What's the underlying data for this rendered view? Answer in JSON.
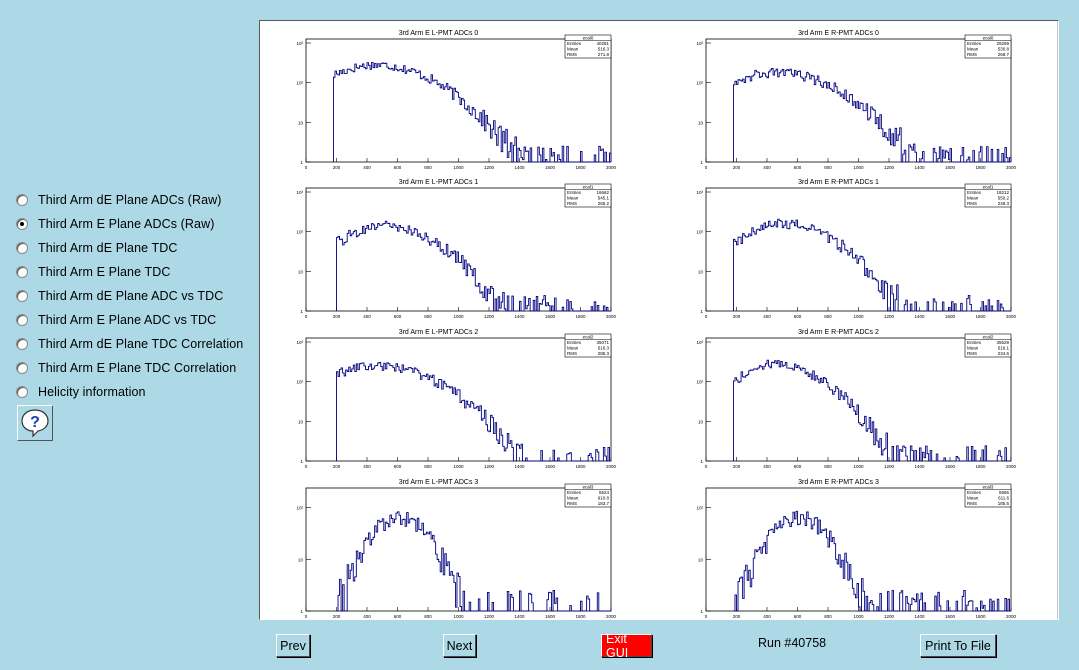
{
  "radio_options": [
    {
      "label": "Third Arm dE Plane ADCs (Raw)",
      "checked": false
    },
    {
      "label": "Third Arm E Plane ADCs (Raw)",
      "checked": true
    },
    {
      "label": "Third Arm dE Plane TDC",
      "checked": false
    },
    {
      "label": "Third Arm E Plane TDC",
      "checked": false
    },
    {
      "label": "Third Arm dE Plane ADC vs TDC",
      "checked": false
    },
    {
      "label": "Third Arm E Plane ADC vs TDC",
      "checked": false
    },
    {
      "label": "Third Arm dE Plane TDC Correlation",
      "checked": false
    },
    {
      "label": "Third Arm E Plane TDC Correlation",
      "checked": false
    },
    {
      "label": "Helicity information",
      "checked": false
    }
  ],
  "help_button": {
    "icon": "question-bubble-icon",
    "label": "?"
  },
  "buttons": {
    "prev": "Prev",
    "next": "Next",
    "exit": "Exit GUI",
    "print": "Print To File"
  },
  "run_label": "Run #40758",
  "colors": {
    "background": "#add8e6",
    "hist_line": "#00007f",
    "exit_button": "#ff0000"
  },
  "stats_labels": [
    "Entries",
    "Mean",
    "RMS"
  ],
  "x_axis_ticks": [
    "0",
    "200",
    "400",
    "600",
    "800",
    "1000",
    "1200",
    "1400",
    "1600",
    "1800",
    "2000"
  ],
  "y_axis_ticks": [
    "1",
    "10",
    "10²",
    "10³"
  ],
  "chart_data": [
    {
      "type": "histogram",
      "title": "3rd Arm E L-PMT ADCs 0",
      "stats_name": "ecal0",
      "entries": "40281",
      "mean": "516.3",
      "rms": "271.8",
      "y_log": true,
      "xlim": [
        0,
        2000
      ],
      "ylim": [
        1,
        1000
      ],
      "threshold": 180,
      "peak_x": 450,
      "peak_log": 2.45,
      "init_log": 2.2,
      "falloff": 760
    },
    {
      "type": "histogram",
      "title": "3rd Arm E R-PMT ADCs 0",
      "stats_name": "ecal0",
      "entries": "29259",
      "mean": "530.8",
      "rms": "268.7",
      "y_log": true,
      "xlim": [
        0,
        2000
      ],
      "ylim": [
        1,
        1000
      ],
      "threshold": 180,
      "peak_x": 460,
      "peak_log": 2.25,
      "init_log": 2.05,
      "falloff": 760
    },
    {
      "type": "histogram",
      "title": "3rd Arm E L-PMT ADCs 1",
      "stats_name": "ecal1",
      "entries": "16662",
      "mean": "545.1",
      "rms": "265.2",
      "y_log": true,
      "xlim": [
        0,
        2000
      ],
      "ylim": [
        1,
        1000
      ],
      "threshold": 200,
      "peak_x": 480,
      "peak_log": 2.15,
      "init_log": 1.7,
      "falloff": 700
    },
    {
      "type": "histogram",
      "title": "3rd Arm E R-PMT ADCs 1",
      "stats_name": "ecal1",
      "entries": "18212",
      "mean": "550.2",
      "rms": "248.3",
      "y_log": true,
      "xlim": [
        0,
        2000
      ],
      "ylim": [
        1,
        1000
      ],
      "threshold": 180,
      "peak_x": 500,
      "peak_log": 2.2,
      "init_log": 1.7,
      "falloff": 650
    },
    {
      "type": "histogram",
      "title": "3rd Arm E L-PMT ADCs 2",
      "stats_name": "ecal2",
      "entries": "35071",
      "mean": "516.3",
      "rms": "285.3",
      "y_log": true,
      "xlim": [
        0,
        2000
      ],
      "ylim": [
        1,
        1000
      ],
      "threshold": 200,
      "peak_x": 460,
      "peak_log": 2.4,
      "init_log": 2.2,
      "falloff": 780
    },
    {
      "type": "histogram",
      "title": "3rd Arm E R-PMT ADCs 2",
      "stats_name": "ecal2",
      "entries": "35629",
      "mean": "516.1",
      "rms": "234.6",
      "y_log": true,
      "xlim": [
        0,
        2000
      ],
      "ylim": [
        1,
        1000
      ],
      "threshold": 180,
      "peak_x": 430,
      "peak_log": 2.45,
      "init_log": 2.0,
      "falloff": 640
    },
    {
      "type": "histogram",
      "title": "3rd Arm E L-PMT ADCs 3",
      "stats_name": "ecal3",
      "entries": "5524",
      "mean": "610.8",
      "rms": "183.7",
      "y_log": true,
      "xlim": [
        0,
        2000
      ],
      "ylim": [
        1,
        200
      ],
      "threshold": 200,
      "peak_x": 600,
      "peak_log": 1.8,
      "init_log": 0.1,
      "falloff": 400
    },
    {
      "type": "histogram",
      "title": "3rd Arm E R-PMT ADCs 3",
      "stats_name": "ecal3",
      "entries": "5565",
      "mean": "611.6",
      "rms": "185.5",
      "y_log": true,
      "xlim": [
        0,
        2000
      ],
      "ylim": [
        1,
        200
      ],
      "threshold": 180,
      "peak_x": 600,
      "peak_log": 1.8,
      "init_log": 0.1,
      "falloff": 400
    }
  ]
}
